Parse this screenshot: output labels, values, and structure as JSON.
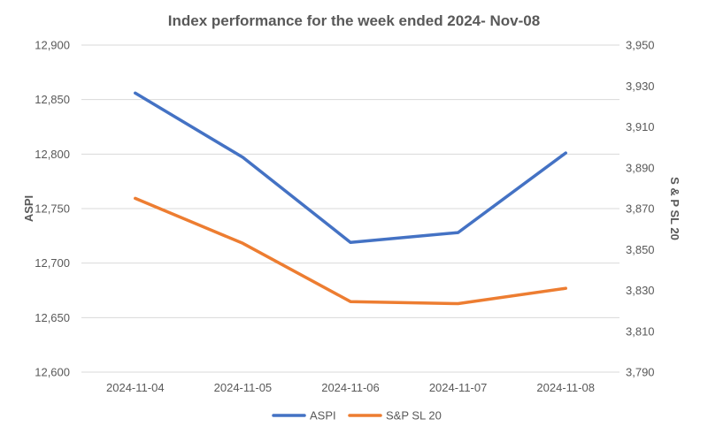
{
  "chart_data": {
    "type": "line",
    "title": "Index performance for the week ended 2024- Nov-08",
    "categories": [
      "2024-11-04",
      "2024-11-05",
      "2024-11-06",
      "2024-11-07",
      "2024-11-08"
    ],
    "left_axis": {
      "label": "ASPI",
      "ylim": [
        12600,
        12900
      ],
      "ticks": [
        "12,600",
        "12,650",
        "12,700",
        "12,750",
        "12,800",
        "12,850",
        "12,900"
      ]
    },
    "right_axis": {
      "label": "S & P SL 20",
      "ylim": [
        3790,
        3950
      ],
      "ticks": [
        "3,790",
        "3,810",
        "3,830",
        "3,850",
        "3,870",
        "3,890",
        "3,910",
        "3,930",
        "3,950"
      ]
    },
    "series": [
      {
        "name": "ASPI",
        "axis": "left",
        "color": "#4472c4",
        "values": [
          12856,
          12797,
          12719,
          12728,
          12801
        ]
      },
      {
        "name": "S&P SL 20",
        "axis": "right",
        "color": "#ed7d31",
        "values": [
          3875,
          3853,
          3824.5,
          3823.5,
          3831
        ]
      }
    ],
    "grid": true,
    "legend_position": "bottom"
  }
}
